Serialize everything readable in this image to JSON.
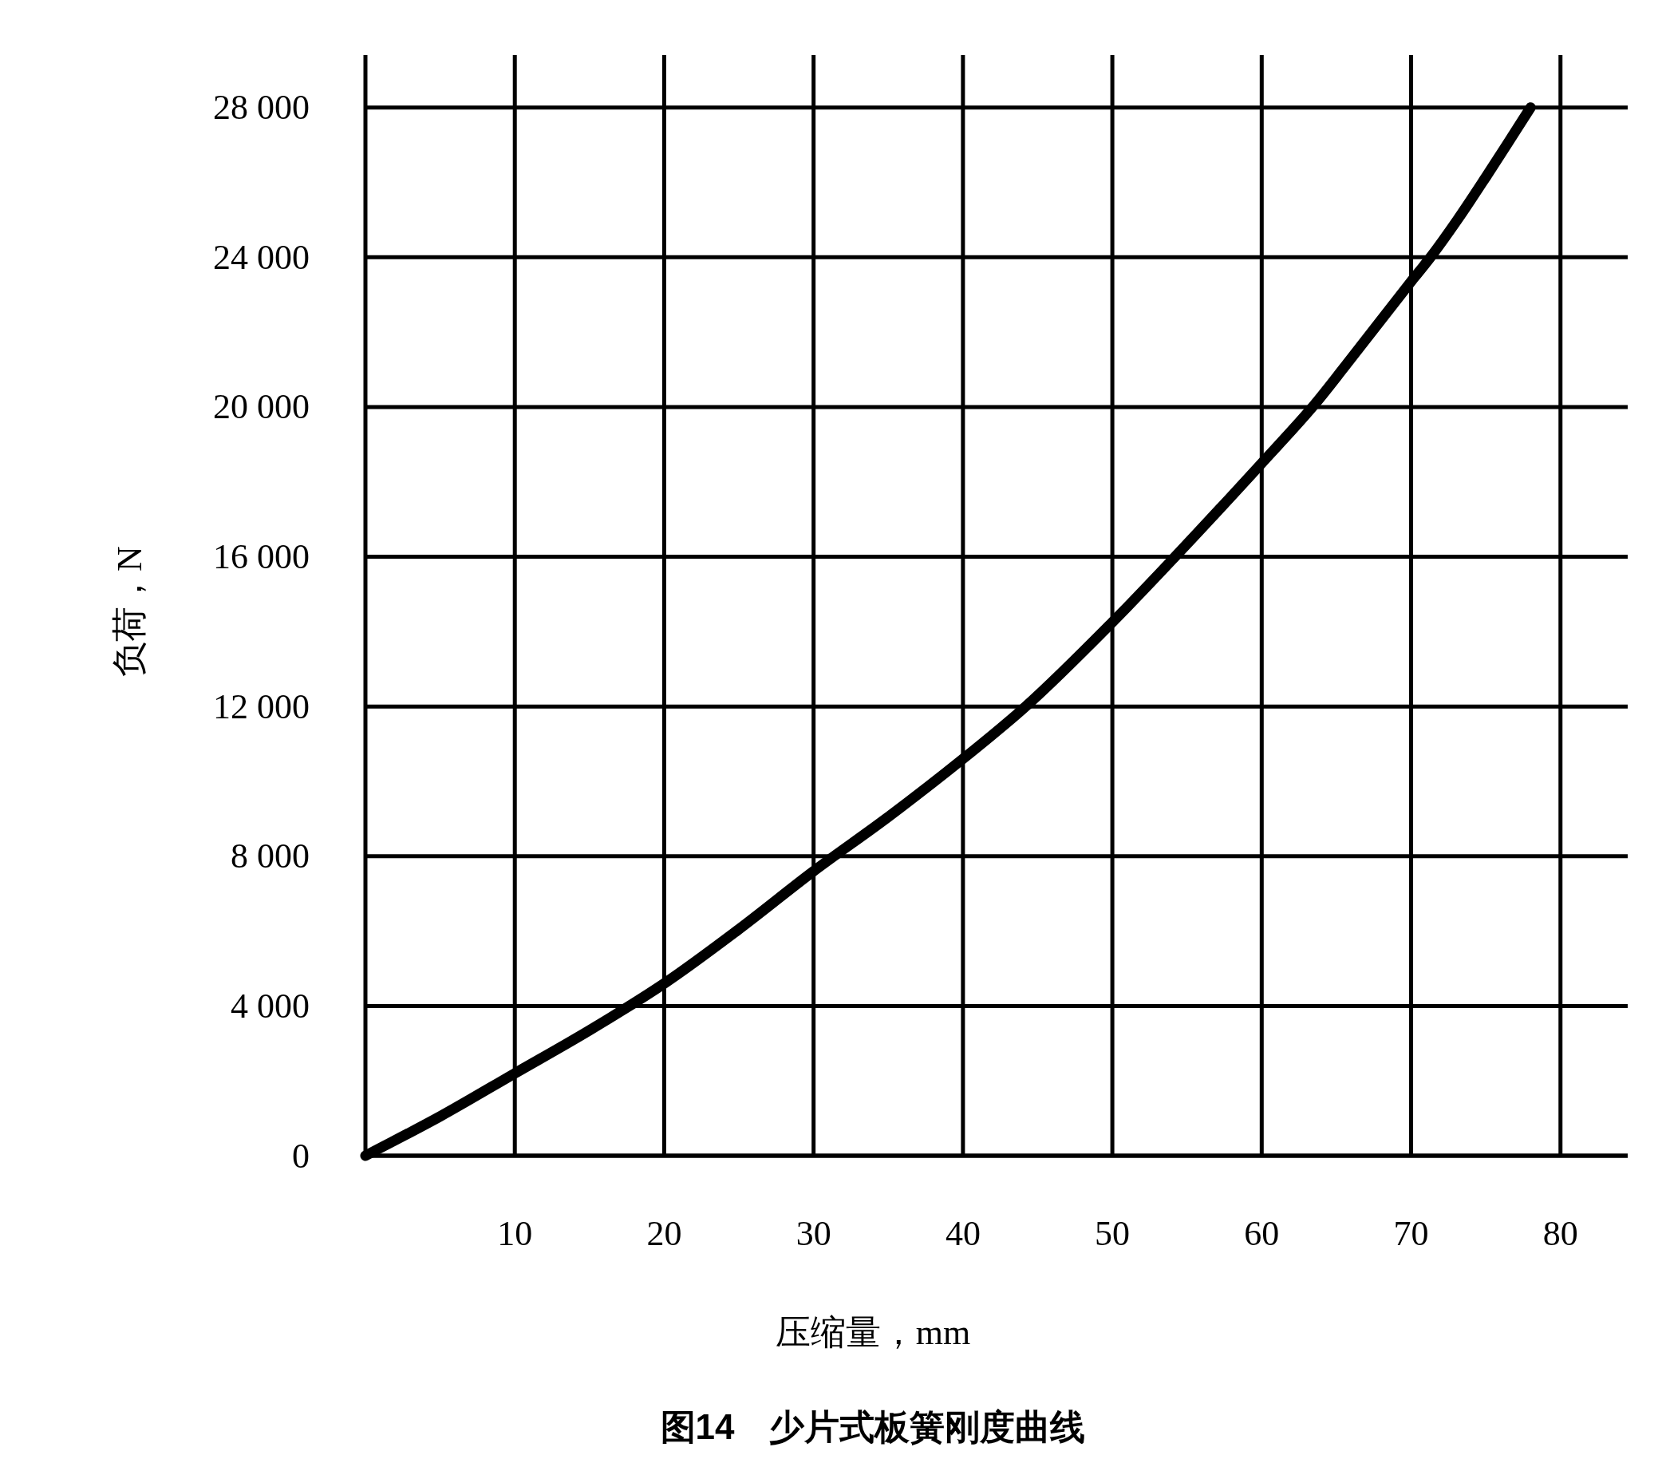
{
  "chart_data": {
    "type": "line",
    "title": "图14　少片式板簧刚度曲线",
    "xlabel": "压缩量，mm",
    "ylabel": "负荷，N",
    "x": [
      0,
      5,
      10,
      15,
      20,
      25,
      30,
      35,
      40,
      44.2,
      50,
      54.2,
      60,
      63.4,
      65.6,
      70,
      71.3,
      73.1,
      75.1,
      76.4,
      78
    ],
    "series": [
      {
        "color": "#000000",
        "values": [
          0,
          1050,
          2200,
          3350,
          4600,
          6050,
          7600,
          9050,
          10600,
          12000,
          14250,
          16000,
          18500,
          20000,
          21100,
          23350,
          24000,
          25000,
          26200,
          27000,
          28000
        ]
      }
    ],
    "xlim": [
      0,
      84.5
    ],
    "ylim": [
      0,
      29400
    ],
    "xticks": [
      10,
      20,
      30,
      40,
      50,
      60,
      70,
      80
    ],
    "yticks": [
      0,
      {
        "value": 4000,
        "label": "4 000"
      },
      {
        "value": 8000,
        "label": "8 000"
      },
      {
        "value": 12000,
        "label": "12 000"
      },
      {
        "value": 16000,
        "label": "16 000"
      },
      {
        "value": 20000,
        "label": "20 000"
      },
      {
        "value": 24000,
        "label": "24 000"
      },
      {
        "value": 28000,
        "label": "28 000"
      }
    ],
    "grid": true,
    "line_style": "solid"
  }
}
